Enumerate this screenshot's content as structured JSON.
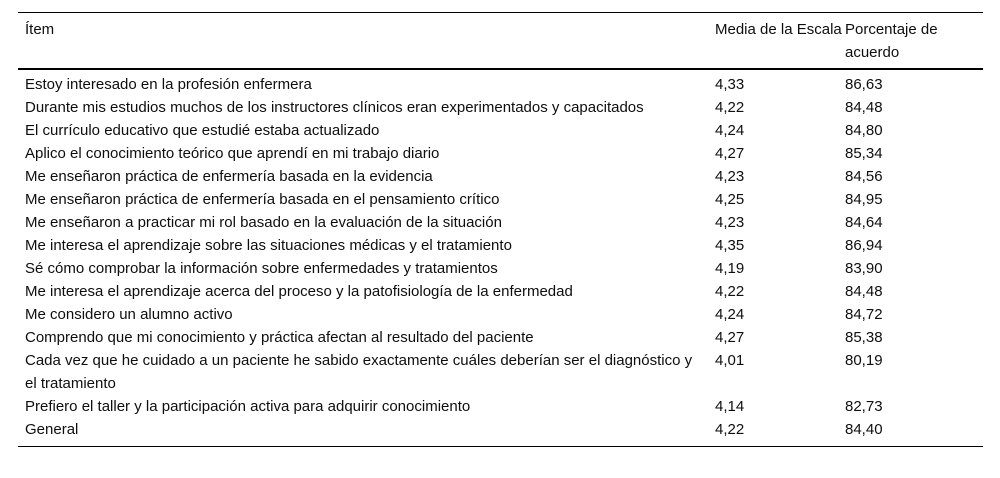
{
  "table": {
    "columns": {
      "item": "Ítem",
      "media": "Media de la Escala",
      "porcentaje": "Porcentaje de acuerdo"
    },
    "rows": [
      {
        "item": "Estoy interesado en la profesión enfermera",
        "media": "4,33",
        "porcentaje": "86,63"
      },
      {
        "item": "Durante mis estudios muchos de los instructores clínicos eran experimentados y capacitados",
        "media": "4,22",
        "porcentaje": "84,48"
      },
      {
        "item": "El currículo educativo que estudié estaba actualizado",
        "media": "4,24",
        "porcentaje": "84,80"
      },
      {
        "item": "Aplico el conocimiento teórico que aprendí en mi trabajo diario",
        "media": "4,27",
        "porcentaje": "85,34"
      },
      {
        "item": "Me enseñaron práctica de enfermería basada en la evidencia",
        "media": "4,23",
        "porcentaje": "84,56"
      },
      {
        "item": "Me enseñaron práctica de enfermería basada en el pensamiento crítico",
        "media": "4,25",
        "porcentaje": "84,95"
      },
      {
        "item": "Me enseñaron a practicar mi rol basado en la evaluación de la situación",
        "media": "4,23",
        "porcentaje": "84,64"
      },
      {
        "item": "Me interesa el aprendizaje sobre las situaciones médicas y el tratamiento",
        "media": "4,35",
        "porcentaje": "86,94"
      },
      {
        "item": "Sé cómo comprobar la información sobre enfermedades y tratamientos",
        "media": "4,19",
        "porcentaje": "83,90"
      },
      {
        "item": "Me interesa el aprendizaje acerca del proceso y la patofisiología de la enfermedad",
        "media": "4,22",
        "porcentaje": "84,48"
      },
      {
        "item": "Me considero un alumno activo",
        "media": "4,24",
        "porcentaje": "84,72"
      },
      {
        "item": "Comprendo que mi conocimiento y práctica afectan al resultado del paciente",
        "media": "4,27",
        "porcentaje": "85,38"
      },
      {
        "item": "Cada vez que he cuidado a un paciente he sabido exactamente cuáles deberían ser el diagnóstico y el tratamiento",
        "media": "4,01",
        "porcentaje": "80,19"
      },
      {
        "item": "Prefiero el taller y la participación activa para adquirir conocimiento",
        "media": "4,14",
        "porcentaje": "82,73"
      },
      {
        "item": "General",
        "media": "4,22",
        "porcentaje": "84,40"
      }
    ],
    "colors": {
      "text": "#0e0e0e",
      "rule": "#000000",
      "background": "#ffffff"
    }
  }
}
